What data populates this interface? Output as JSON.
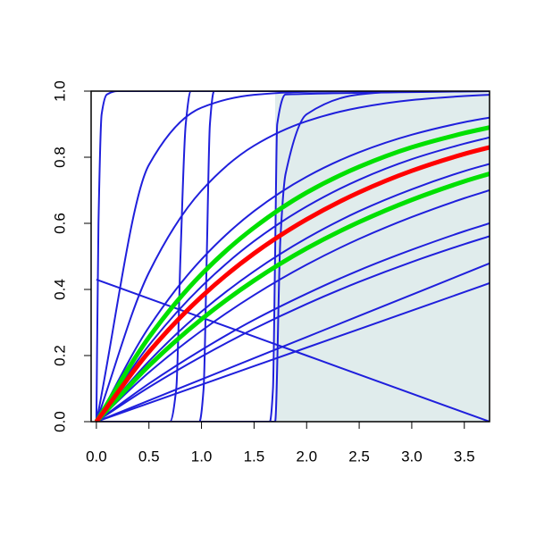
{
  "chart_data": {
    "type": "line",
    "xlim": [
      -0.05,
      3.74
    ],
    "ylim": [
      0,
      1.0
    ],
    "xticks": [
      {
        "value": 0,
        "label": "0.0"
      },
      0.5,
      {
        "value": 1,
        "label": "1.0"
      },
      1.5,
      {
        "value": 2,
        "label": "2.0"
      },
      2.5,
      {
        "value": 3,
        "label": "3.0"
      },
      3.5
    ],
    "yticks": [
      {
        "value": 0,
        "label": "0.0"
      },
      0.2,
      0.4,
      0.6,
      0.8,
      {
        "value": 1,
        "label": "1.0"
      }
    ],
    "shaded_region": {
      "xmin": 1.7,
      "xmax": 3.74,
      "color": "#e0ecec"
    },
    "x": [
      0,
      0.5,
      1,
      1.5,
      2,
      2.5,
      3,
      3.5,
      3.74
    ],
    "series": [
      {
        "color": "#1f1fdc",
        "width": 2,
        "x": [
          0,
          0.02,
          0.05,
          0.1,
          0.2,
          3.74
        ],
        "values": [
          0,
          0.6,
          0.93,
          0.99,
          1,
          1
        ]
      },
      {
        "color": "#1f1fdc",
        "width": 2,
        "x": [
          0,
          0.7,
          0.76,
          0.8,
          0.85,
          0.9,
          3.74
        ],
        "values": [
          0,
          0,
          0.1,
          0.5,
          0.9,
          1,
          1
        ]
      },
      {
        "color": "#1f1fdc",
        "width": 2,
        "x": [
          0,
          0.98,
          1.02,
          1.05,
          1.08,
          1.12,
          3.74
        ],
        "values": [
          0,
          0,
          0.1,
          0.5,
          0.9,
          1,
          1
        ]
      },
      {
        "color": "#1f1fdc",
        "width": 2,
        "x": [
          0,
          1.65,
          1.68,
          1.7,
          1.72,
          1.8,
          3.74
        ],
        "values": [
          0,
          0,
          0.1,
          0.5,
          0.9,
          0.99,
          1
        ]
      },
      {
        "color": "#1f1fdc",
        "width": 2,
        "x": [
          0,
          1.7,
          1.75,
          1.8,
          2,
          2.5,
          3,
          3.74
        ],
        "values": [
          0,
          0,
          0.55,
          0.75,
          0.93,
          0.99,
          1,
          1
        ]
      },
      {
        "color": "#1f1fdc",
        "width": 2,
        "values": [
          0,
          0.777,
          0.95,
          0.989,
          0.998,
          1,
          1,
          1,
          1
        ]
      },
      {
        "color": "#1f1fdc",
        "width": 2,
        "values": [
          0,
          0.451,
          0.699,
          0.835,
          0.909,
          0.95,
          0.973,
          0.985,
          0.989
        ]
      },
      {
        "color": "#1f1fdc",
        "width": 2,
        "values": [
          0.43,
          0.3725,
          0.315,
          0.2575,
          0.2,
          0.1425,
          0.085,
          0.0275,
          0
        ]
      },
      {
        "color": "#1f1fdc",
        "width": 2,
        "values": [
          0,
          0.064,
          0.128,
          0.192,
          0.256,
          0.32,
          0.384,
          0.448,
          0.479
        ]
      },
      {
        "color": "#1f1fdc",
        "width": 2,
        "values": [
          0,
          0.056,
          0.112,
          0.168,
          0.224,
          0.28,
          0.336,
          0.392,
          0.419
        ]
      },
      {
        "color": "#1f1fdc",
        "width": 2,
        "values": [
          0,
          0.286,
          0.491,
          0.637,
          0.741,
          0.815,
          0.868,
          0.906,
          0.92
        ]
      },
      {
        "color": "#1f1fdc",
        "width": 2,
        "values": [
          0,
          0.231,
          0.409,
          0.546,
          0.651,
          0.732,
          0.794,
          0.841,
          0.86
        ]
      },
      {
        "color": "#1f1fdc",
        "width": 2,
        "values": [
          0,
          0.183,
          0.333,
          0.455,
          0.555,
          0.637,
          0.703,
          0.758,
          0.78
        ]
      },
      {
        "color": "#1f1fdc",
        "width": 2,
        "values": [
          0,
          0.149,
          0.275,
          0.383,
          0.475,
          0.553,
          0.619,
          0.676,
          0.7
        ]
      },
      {
        "color": "#1f1fdc",
        "width": 2,
        "values": [
          0,
          0.115,
          0.217,
          0.308,
          0.387,
          0.458,
          0.52,
          0.576,
          0.6
        ]
      },
      {
        "color": "#1f1fdc",
        "width": 2,
        "values": [
          0,
          0.104,
          0.197,
          0.281,
          0.356,
          0.423,
          0.483,
          0.537,
          0.561
        ]
      },
      {
        "color": "#00e000",
        "width": 5,
        "values": [
          0,
          0.255,
          0.446,
          0.587,
          0.693,
          0.771,
          0.83,
          0.873,
          0.89
        ]
      },
      {
        "color": "#00e000",
        "width": 5,
        "values": [
          0,
          0.169,
          0.31,
          0.427,
          0.524,
          0.604,
          0.671,
          0.727,
          0.75
        ]
      },
      {
        "color": "#ff0000",
        "width": 5,
        "values": [
          0,
          0.211,
          0.378,
          0.509,
          0.612,
          0.694,
          0.759,
          0.81,
          0.83
        ]
      }
    ]
  }
}
